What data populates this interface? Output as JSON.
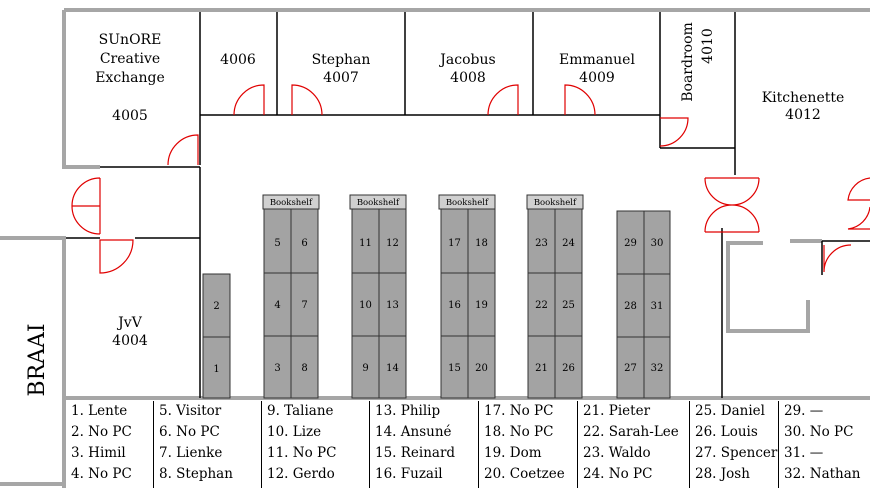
{
  "rooms": [
    {
      "id": "4005",
      "lines": [
        "SUnORE",
        "Creative",
        "Exchange"
      ],
      "number": "4005"
    },
    {
      "id": "4006",
      "lines": [],
      "number": "4006"
    },
    {
      "id": "4007",
      "lines": [
        "Stephan"
      ],
      "number": "4007"
    },
    {
      "id": "4008",
      "lines": [
        "Jacobus"
      ],
      "number": "4008"
    },
    {
      "id": "4009",
      "lines": [
        "Emmanuel"
      ],
      "number": "4009"
    },
    {
      "id": "4010",
      "lines": [
        "Boardroom"
      ],
      "number": "4010"
    },
    {
      "id": "4012",
      "lines": [
        "Kitchenette"
      ],
      "number": "4012"
    },
    {
      "id": "4004",
      "lines": [
        "JvV"
      ],
      "number": "4004"
    }
  ],
  "braai_label": "BRAAI",
  "bookshelf_label": "Bookshelf",
  "desk_numbers": {
    "col1": [
      "2",
      "1"
    ],
    "col2_left": [
      "5",
      "4",
      "3"
    ],
    "col2_right": [
      "6",
      "7",
      "8"
    ],
    "col3_left": [
      "11",
      "10",
      "9"
    ],
    "col3_right": [
      "12",
      "13",
      "14"
    ],
    "col4_left": [
      "17",
      "16",
      "15"
    ],
    "col4_right": [
      "18",
      "19",
      "20"
    ],
    "col5_left": [
      "23",
      "22",
      "21"
    ],
    "col5_right": [
      "24",
      "25",
      "26"
    ],
    "col6_left": [
      "29",
      "28",
      "27"
    ],
    "col6_right": [
      "30",
      "31",
      "32"
    ]
  },
  "legend": [
    [
      "1. Lente",
      "2. No PC",
      "3. Himil",
      "4. No PC"
    ],
    [
      "5. Visitor",
      "6. No PC",
      "7. Lienke",
      "8. Stephan"
    ],
    [
      "9. Taliane",
      "10. Lize",
      "11. No PC",
      "12. Gerdo"
    ],
    [
      "13. Philip",
      "14. Ansuné",
      "15. Reinard",
      "16. Fuzail"
    ],
    [
      "17. No PC",
      "18. No PC",
      "19. Dom",
      "20. Coetzee"
    ],
    [
      "21. Pieter",
      "22. Sarah-Lee",
      "23. Waldo",
      "24. No PC"
    ],
    [
      "25. Daniel",
      "26. Louis",
      "27. Spencer",
      "28. Josh"
    ],
    [
      "29. —",
      "30. No PC",
      "31. —",
      "32. Nathan"
    ]
  ]
}
